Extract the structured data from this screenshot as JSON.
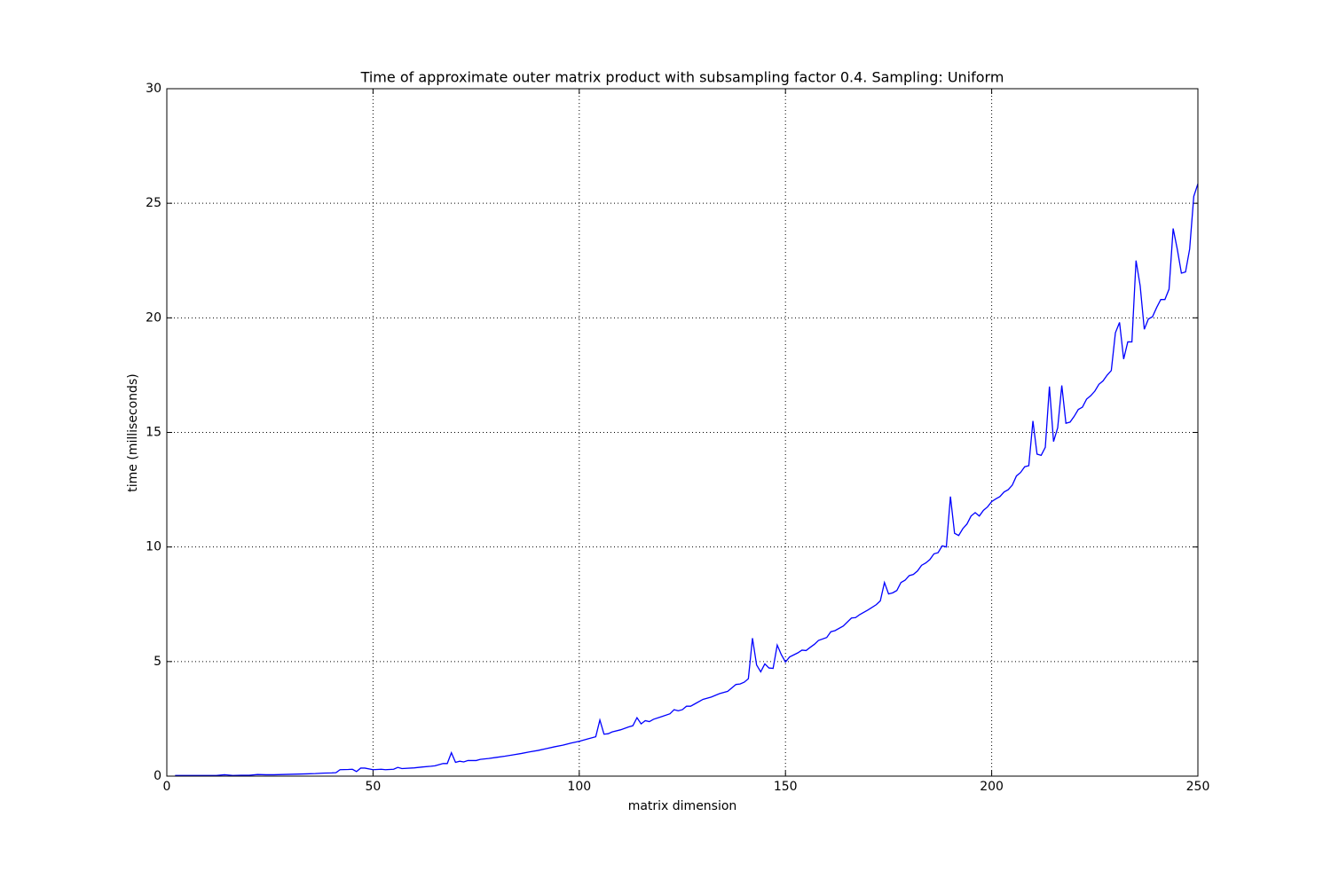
{
  "chart_data": {
    "type": "line",
    "title": "Time of approximate outer matrix product with subsampling factor 0.4. Sampling: Uniform",
    "x_label": "matrix dimension",
    "y_label": "time (milliseconds)",
    "x": [
      2,
      4,
      6,
      8,
      10,
      12,
      14,
      16,
      18,
      20,
      22,
      24,
      26,
      28,
      30,
      32,
      34,
      36,
      38,
      40,
      41,
      42,
      44,
      45,
      46,
      47,
      48,
      50,
      52,
      53,
      55,
      56,
      57,
      60,
      62,
      64,
      65,
      67,
      68,
      69,
      70,
      71,
      72,
      73,
      75,
      76,
      78,
      80,
      82,
      84,
      86,
      88,
      90,
      92,
      94,
      96,
      98,
      100,
      102,
      104,
      105,
      106,
      107,
      108,
      110,
      112,
      113,
      114,
      115,
      116,
      117,
      118,
      120,
      122,
      123,
      124,
      125,
      126,
      127,
      128,
      130,
      132,
      134,
      136,
      137,
      138,
      139,
      140,
      141,
      142,
      143,
      144,
      145,
      146,
      147,
      148,
      149,
      150,
      151,
      153,
      154,
      155,
      156,
      157,
      158,
      160,
      161,
      162,
      164,
      166,
      167,
      168,
      170,
      172,
      173,
      174,
      175,
      176,
      177,
      178,
      179,
      180,
      181,
      182,
      183,
      184,
      185,
      186,
      187,
      188,
      189,
      190,
      191,
      192,
      193,
      194,
      195,
      196,
      197,
      198,
      199,
      200,
      201,
      202,
      203,
      204,
      205,
      206,
      207,
      208,
      209,
      210,
      211,
      212,
      213,
      214,
      215,
      216,
      217,
      218,
      219,
      220,
      221,
      222,
      223,
      224,
      225,
      226,
      227,
      228,
      229,
      230,
      231,
      232,
      233,
      234,
      235,
      236,
      237,
      238,
      239,
      240,
      241,
      242,
      243,
      244,
      245,
      246,
      247,
      248,
      249,
      250
    ],
    "series": [
      {
        "name": "time",
        "color": "#0000ff",
        "values": [
          0.03,
          0.03,
          0.03,
          0.03,
          0.03,
          0.03,
          0.06,
          0.03,
          0.04,
          0.04,
          0.07,
          0.06,
          0.06,
          0.07,
          0.08,
          0.09,
          0.1,
          0.11,
          0.13,
          0.14,
          0.15,
          0.28,
          0.29,
          0.3,
          0.2,
          0.35,
          0.35,
          0.28,
          0.3,
          0.28,
          0.3,
          0.38,
          0.33,
          0.36,
          0.4,
          0.43,
          0.45,
          0.55,
          0.55,
          1.02,
          0.6,
          0.65,
          0.62,
          0.68,
          0.68,
          0.73,
          0.77,
          0.82,
          0.87,
          0.93,
          0.99,
          1.06,
          1.12,
          1.2,
          1.28,
          1.35,
          1.44,
          1.52,
          1.62,
          1.72,
          2.45,
          1.83,
          1.85,
          1.93,
          2.02,
          2.15,
          2.2,
          2.55,
          2.28,
          2.42,
          2.38,
          2.48,
          2.6,
          2.72,
          2.9,
          2.85,
          2.9,
          3.05,
          3.05,
          3.15,
          3.35,
          3.45,
          3.6,
          3.7,
          3.85,
          4.0,
          4.02,
          4.1,
          4.25,
          6.02,
          4.85,
          4.55,
          4.9,
          4.72,
          4.7,
          5.72,
          5.3,
          4.98,
          5.2,
          5.38,
          5.5,
          5.48,
          5.62,
          5.75,
          5.92,
          6.05,
          6.3,
          6.35,
          6.55,
          6.9,
          6.92,
          7.05,
          7.25,
          7.48,
          7.65,
          8.45,
          7.95,
          8.0,
          8.1,
          8.45,
          8.55,
          8.75,
          8.8,
          8.95,
          9.2,
          9.3,
          9.45,
          9.7,
          9.75,
          10.05,
          10.0,
          12.2,
          10.6,
          10.5,
          10.8,
          11.0,
          11.35,
          11.5,
          11.35,
          11.6,
          11.75,
          11.98,
          12.1,
          12.2,
          12.4,
          12.5,
          12.7,
          13.1,
          13.25,
          13.5,
          13.55,
          15.5,
          14.05,
          14.0,
          14.35,
          17.0,
          14.6,
          15.2,
          17.05,
          15.4,
          15.45,
          15.7,
          16.0,
          16.1,
          16.45,
          16.6,
          16.8,
          17.1,
          17.25,
          17.5,
          17.7,
          19.35,
          19.8,
          18.2,
          18.95,
          18.95,
          22.5,
          21.4,
          19.5,
          19.95,
          20.05,
          20.45,
          20.8,
          20.8,
          21.25,
          23.9,
          23.0,
          21.95,
          22.0,
          23.0,
          25.3,
          25.85
        ]
      }
    ],
    "xlim": [
      0,
      250
    ],
    "xticks": [
      0,
      50,
      100,
      150,
      200,
      250
    ],
    "ylim": [
      0,
      30
    ],
    "yticks": [
      0,
      5,
      10,
      15,
      20,
      25,
      30
    ],
    "grid": true
  }
}
